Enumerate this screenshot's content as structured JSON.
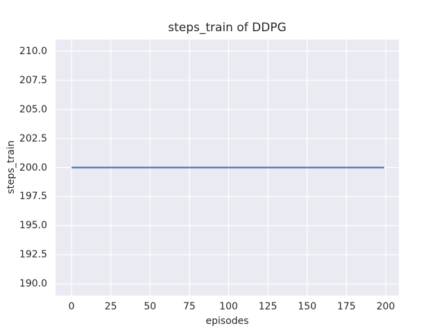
{
  "chart_data": {
    "type": "line",
    "title": "steps_train of DDPG",
    "xlabel": "episodes",
    "ylabel": "steps_train",
    "x_tick_values": [
      0,
      25,
      50,
      75,
      100,
      125,
      150,
      175,
      200
    ],
    "x_tick_labels": [
      "0",
      "25",
      "50",
      "75",
      "100",
      "125",
      "150",
      "175",
      "200"
    ],
    "y_tick_values": [
      190,
      192.5,
      195,
      197.5,
      200,
      202.5,
      205,
      207.5,
      210
    ],
    "y_tick_labels": [
      "190.0",
      "192.5",
      "195.0",
      "197.5",
      "200.0",
      "202.5",
      "205.0",
      "207.5",
      "210.0"
    ],
    "xlim": [
      -10.2,
      208.4
    ],
    "ylim": [
      189,
      211
    ],
    "grid": true,
    "legend": null,
    "series": [
      {
        "name": "steps_train",
        "color": "#4c72b0",
        "x": [
          0,
          199
        ],
        "y": [
          200,
          200
        ]
      }
    ],
    "colors": {
      "figure_background": "#ffffff",
      "axes_background": "#eaeaf2",
      "grid": "#ffffff",
      "line": "#4c72b0",
      "text": "#262626"
    }
  }
}
